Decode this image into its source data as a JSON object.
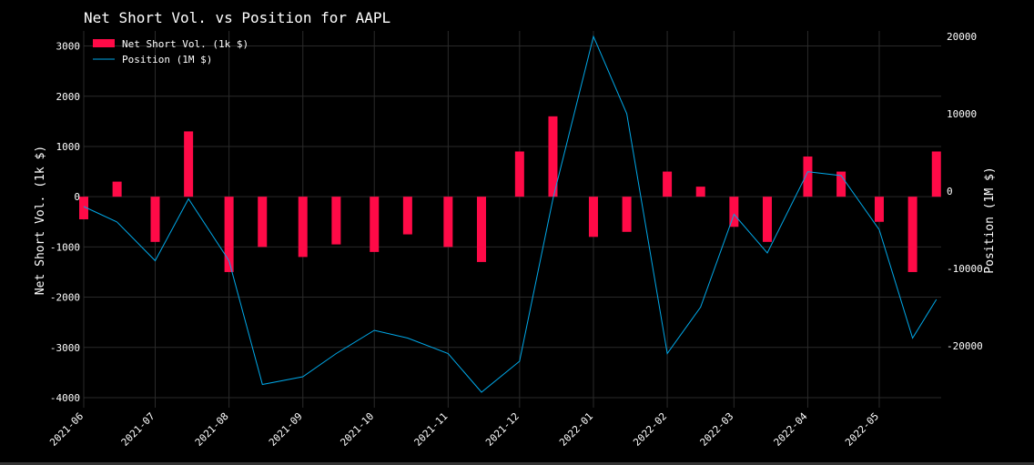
{
  "chart_data": {
    "type": "bar+line",
    "title": "Net Short Vol. vs Position for AAPL",
    "ylabel_left": "Net Short Vol. (1k $)",
    "ylabel_right": "Position (1M $)",
    "ylim_left": [
      -4200,
      3300
    ],
    "ylim_right": [
      -28000,
      20700
    ],
    "yticks_left": [
      "3000",
      "2000",
      "1000",
      "0",
      "-1000",
      "-2000",
      "-3000",
      "-4000"
    ],
    "yticks_right": [
      "20000",
      "10000",
      "0",
      "-10000",
      "-20000"
    ],
    "xticks": [
      "2021-06",
      "2021-07",
      "2021-08",
      "2021-09",
      "2021-10",
      "2021-11",
      "2021-12",
      "2022-01",
      "2022-02",
      "2022-03",
      "2022-04",
      "2022-05"
    ],
    "grid": true,
    "legend_position": "top-left",
    "colors": {
      "bar": "#ff0a47",
      "line": "#00a8e8",
      "background": "#000000",
      "grid": "#2a2a2a"
    },
    "series": [
      {
        "name": "Net Short Vol. (1k $)",
        "kind": "bar",
        "x": [
          "2021-06-01",
          "2021-06-15",
          "2021-07-01",
          "2021-07-15",
          "2021-08-01",
          "2021-08-15",
          "2021-09-01",
          "2021-09-15",
          "2021-10-01",
          "2021-10-15",
          "2021-11-01",
          "2021-11-15",
          "2021-12-01",
          "2021-12-15",
          "2022-01-01",
          "2022-01-15",
          "2022-02-01",
          "2022-02-15",
          "2022-03-01",
          "2022-03-15",
          "2022-04-01",
          "2022-04-15",
          "2022-05-01",
          "2022-05-15",
          "2022-05-25"
        ],
        "values": [
          -450,
          300,
          -900,
          1300,
          -1500,
          -1000,
          -1200,
          -950,
          -1100,
          -750,
          -1000,
          -1300,
          900,
          1600,
          -800,
          -700,
          500,
          200,
          -600,
          -900,
          800,
          500,
          -500,
          -1500,
          900
        ]
      },
      {
        "name": "Position (1M $)",
        "kind": "line",
        "x": [
          "2021-06-01",
          "2021-06-15",
          "2021-07-01",
          "2021-07-15",
          "2021-08-01",
          "2021-08-15",
          "2021-09-01",
          "2021-09-15",
          "2021-10-01",
          "2021-10-15",
          "2021-11-01",
          "2021-11-15",
          "2021-12-01",
          "2021-12-15",
          "2022-01-01",
          "2022-01-15",
          "2022-02-01",
          "2022-02-15",
          "2022-03-01",
          "2022-03-15",
          "2022-04-01",
          "2022-04-15",
          "2022-05-01",
          "2022-05-15",
          "2022-05-25"
        ],
        "values": [
          -2000,
          -4000,
          -9000,
          -1000,
          -9000,
          -25000,
          -24000,
          -21000,
          -18000,
          -19000,
          -21000,
          -26000,
          -22000,
          -1000,
          20000,
          10000,
          -21000,
          -15000,
          -3000,
          -8000,
          2500,
          2000,
          -5000,
          -19000,
          -14000
        ]
      }
    ]
  }
}
